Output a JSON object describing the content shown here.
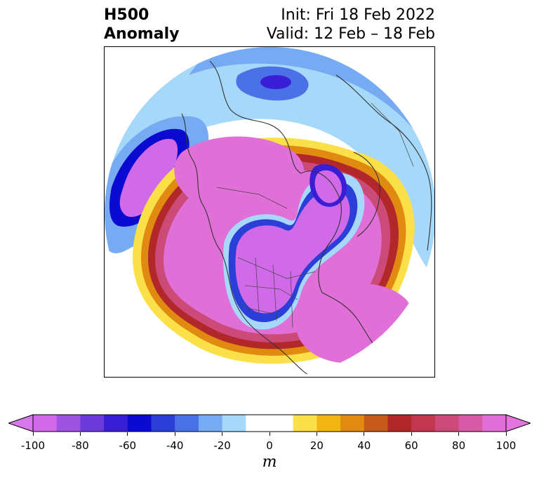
{
  "header": {
    "title_line1": "H500",
    "title_line2": "Anomaly",
    "init": "Init: Fri 18 Feb 2022",
    "valid": "Valid: 12 Feb – 18 Feb"
  },
  "map": {
    "projection": "polar stereographic (north pole)",
    "field": "500 hPa geopotential height anomaly",
    "features": [
      "coastlines",
      "country borders",
      "state/province borders"
    ]
  },
  "colorbar": {
    "units": "m",
    "extend": "both",
    "ticks": [
      "-100",
      "-80",
      "-60",
      "-40",
      "-20",
      "0",
      "20",
      "40",
      "60",
      "80",
      "100"
    ],
    "levels": [
      -100,
      -90,
      -80,
      -70,
      -60,
      -50,
      -40,
      -30,
      -20,
      -10,
      10,
      20,
      30,
      40,
      50,
      60,
      70,
      80,
      90,
      100
    ],
    "colors": [
      "#d06ae8",
      "#9e52e0",
      "#6c3ad8",
      "#3a1ed6",
      "#0a0ad0",
      "#2c3ed8",
      "#4a72e6",
      "#76aaf2",
      "#a6d8fa",
      "#ffffff",
      "#ffffff",
      "#fce04a",
      "#f2b612",
      "#e08a12",
      "#c65a1a",
      "#b2282a",
      "#c23650",
      "#cc4a78",
      "#d65aa6",
      "#e070d8"
    ],
    "under_color": "#d678ec",
    "over_color": "#e474de"
  }
}
